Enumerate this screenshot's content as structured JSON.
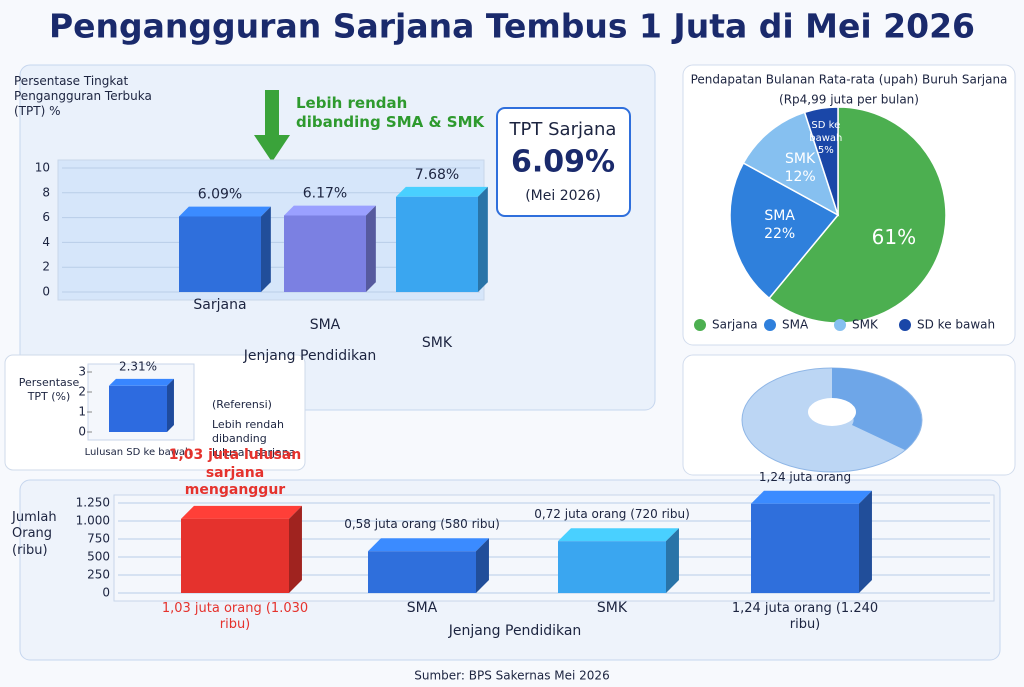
{
  "title": "Pengangguran Sarjana Tembus 1 Juta di Mei 2026",
  "source": "Sumber: BPS Sakernas Mei 2026",
  "chart_data": [
    {
      "type": "bar",
      "ylabel": "Persentase Tingkat Pengangguran Terbuka (TPT) %",
      "xlabel": "Jenjang Pendidikan",
      "categories": [
        "Sarjana",
        "SMA",
        "SMK"
      ],
      "values": [
        6.09,
        6.17,
        7.68
      ],
      "value_labels": [
        "6.09%",
        "6.17%",
        "7.68%"
      ],
      "colors": [
        "#2f6fdc",
        "#7b80e2",
        "#3aa6f0"
      ],
      "ylim": [
        0,
        10
      ],
      "yticks": [
        0,
        2,
        4,
        6,
        8,
        10
      ],
      "grid": true,
      "annotation": "Lebih rendah dibanding SMA & SMK",
      "callout": {
        "title": "TPT Sarjana",
        "value": "6.09%",
        "note": "(Mei 2026)"
      }
    },
    {
      "type": "pie",
      "title": "Pendapatan Bulanan Rata-rata (upah) Buruh Sarjana",
      "subtitle": "(Rp4,99 juta per bulan)",
      "categories": [
        "Sarjana",
        "SMA",
        "SMK",
        "SD ke bawah"
      ],
      "values": [
        61,
        22,
        12,
        5
      ],
      "value_labels": [
        "61%",
        "22%",
        "12%",
        "5%"
      ],
      "colors": [
        "#4caf50",
        "#2f80dc",
        "#86c0f0",
        "#1a47a8"
      ],
      "legend": "bottom"
    },
    {
      "type": "bar",
      "ylabel": "Persentase TPT (%)",
      "categories": [
        "Lulusan SD ke bawah"
      ],
      "values": [
        2.31
      ],
      "value_labels": [
        "2.31%"
      ],
      "colors": [
        "#2d6be0"
      ],
      "ylim": [
        0,
        3
      ],
      "yticks": [
        0,
        1,
        2,
        3
      ],
      "grid": false,
      "annotations": [
        "(Referensi)",
        "Lebih rendah dibanding lulusan sarjana"
      ]
    },
    {
      "type": "bar",
      "ylabel": "Jumlah Orang (ribu)",
      "xlabel": "Jenjang Pendidikan",
      "categories": [
        null,
        "SMA",
        "SMK",
        null
      ],
      "values": [
        1030,
        580,
        720,
        1240
      ],
      "value_labels": [
        "1,03 juta lulusan sarjana menganggur",
        "0,58 juta orang (580 ribu)",
        "0,72 juta orang (720 ribu)",
        "1,24 juta orang"
      ],
      "value_labels_bottom": [
        "1,03 juta orang (1.030 ribu)",
        null,
        null,
        "1,24 juta orang (1.240 ribu)"
      ],
      "colors": [
        "#e5322d",
        "#2f6fdc",
        "#3aa6f0",
        "#2f6fdc"
      ],
      "ylim": [
        0,
        1250
      ],
      "yticks": [
        0,
        250,
        500,
        750,
        {
          "value": 1000,
          "label": "1.000"
        },
        {
          "value": 1250,
          "label": "1.250"
        }
      ],
      "grid": true
    }
  ]
}
